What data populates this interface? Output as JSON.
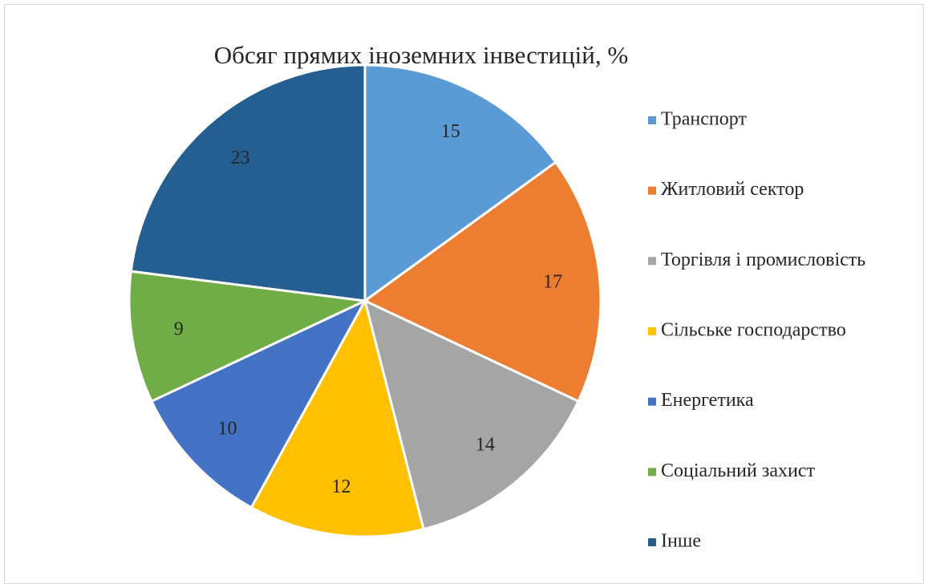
{
  "chart_data": {
    "type": "pie",
    "title": "Обсяг прямих іноземних інвестицій, %",
    "categories": [
      "Транспорт",
      "Житловий сектор",
      "Торгівля і промисловість",
      "Сільське господарство",
      "Енергетика",
      "Соціальний захист",
      "Інше"
    ],
    "values": [
      15,
      17,
      14,
      12,
      10,
      9,
      23
    ],
    "colors": [
      "#5b9bd5",
      "#ed7d31",
      "#a5a5a5",
      "#ffc000",
      "#4472c4",
      "#70ad47",
      "#255e91"
    ],
    "legend": "right"
  }
}
